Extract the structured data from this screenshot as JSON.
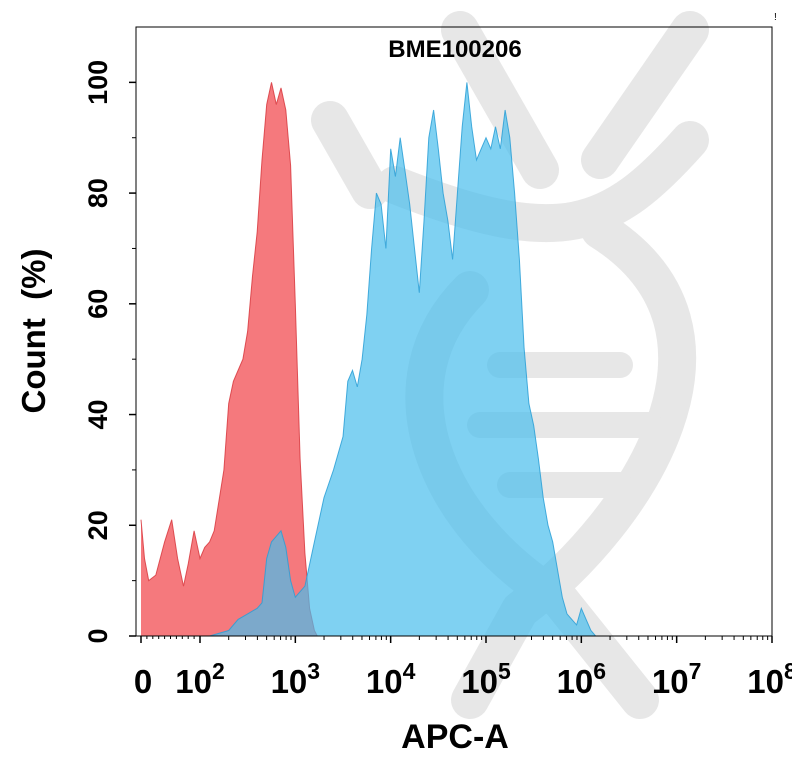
{
  "chart_data": {
    "type": "area",
    "title": "BME100206",
    "xlabel": "APC-A",
    "ylabel": "Count  (%)",
    "x_scale": "biexponential-log",
    "xlim": [
      0,
      100000000
    ],
    "ylim": [
      0,
      110
    ],
    "grid": false,
    "legend": "none",
    "x_ticks": [
      {
        "value": 0,
        "base": "0",
        "exp": ""
      },
      {
        "value": 100,
        "base": "10",
        "exp": "2"
      },
      {
        "value": 1000,
        "base": "10",
        "exp": "3"
      },
      {
        "value": 10000,
        "base": "10",
        "exp": "4"
      },
      {
        "value": 100000,
        "base": "10",
        "exp": "5"
      },
      {
        "value": 1000000,
        "base": "10",
        "exp": "6"
      },
      {
        "value": 10000000,
        "base": "10",
        "exp": "7"
      },
      {
        "value": 100000000,
        "base": "10",
        "exp": "8"
      }
    ],
    "y_ticks": [
      0,
      20,
      40,
      60,
      80,
      100
    ],
    "series": [
      {
        "color": "#f4676b",
        "stroke": "#d83a40",
        "points": [
          [
            0,
            21
          ],
          [
            6,
            14
          ],
          [
            13,
            10
          ],
          [
            25,
            11
          ],
          [
            40,
            17
          ],
          [
            52,
            21
          ],
          [
            62,
            14
          ],
          [
            72,
            9
          ],
          [
            80,
            13
          ],
          [
            90,
            19
          ],
          [
            100,
            14
          ],
          [
            112,
            16
          ],
          [
            126,
            17
          ],
          [
            141,
            19
          ],
          [
            160,
            25
          ],
          [
            178,
            30
          ],
          [
            200,
            42
          ],
          [
            224,
            46
          ],
          [
            251,
            48
          ],
          [
            282,
            50
          ],
          [
            316,
            55
          ],
          [
            355,
            65
          ],
          [
            398,
            73
          ],
          [
            447,
            86
          ],
          [
            501,
            96
          ],
          [
            562,
            100
          ],
          [
            631,
            96
          ],
          [
            708,
            99
          ],
          [
            794,
            95
          ],
          [
            891,
            85
          ],
          [
            1000,
            60
          ],
          [
            1122,
            32
          ],
          [
            1259,
            15
          ],
          [
            1413,
            5
          ],
          [
            1585,
            1
          ],
          [
            1700,
            0
          ]
        ]
      },
      {
        "color": "#49bdec",
        "stroke": "#2a9fd6",
        "points": [
          [
            50,
            0
          ],
          [
            126,
            0
          ],
          [
            200,
            1
          ],
          [
            251,
            3
          ],
          [
            316,
            4
          ],
          [
            398,
            5
          ],
          [
            447,
            6
          ],
          [
            501,
            14
          ],
          [
            562,
            17
          ],
          [
            631,
            18
          ],
          [
            708,
            19
          ],
          [
            794,
            16
          ],
          [
            891,
            10
          ],
          [
            1000,
            7
          ],
          [
            1259,
            9
          ],
          [
            1585,
            17
          ],
          [
            2000,
            25
          ],
          [
            2512,
            30
          ],
          [
            3162,
            36
          ],
          [
            3548,
            46
          ],
          [
            3981,
            48
          ],
          [
            4467,
            45
          ],
          [
            5012,
            50
          ],
          [
            5623,
            58
          ],
          [
            6310,
            70
          ],
          [
            7079,
            80
          ],
          [
            7943,
            78
          ],
          [
            8913,
            70
          ],
          [
            10000,
            88
          ],
          [
            11220,
            83
          ],
          [
            12589,
            90
          ],
          [
            14125,
            84
          ],
          [
            15849,
            78
          ],
          [
            17783,
            70
          ],
          [
            19953,
            62
          ],
          [
            22387,
            75
          ],
          [
            25119,
            90
          ],
          [
            28184,
            95
          ],
          [
            31623,
            88
          ],
          [
            35481,
            80
          ],
          [
            39811,
            75
          ],
          [
            44668,
            68
          ],
          [
            50119,
            80
          ],
          [
            56234,
            92
          ],
          [
            63096,
            100
          ],
          [
            70795,
            92
          ],
          [
            79433,
            86
          ],
          [
            89125,
            88
          ],
          [
            100000,
            90
          ],
          [
            112202,
            88
          ],
          [
            125893,
            92
          ],
          [
            141254,
            88
          ],
          [
            158489,
            95
          ],
          [
            177828,
            90
          ],
          [
            199526,
            80
          ],
          [
            223872,
            68
          ],
          [
            251189,
            52
          ],
          [
            281838,
            42
          ],
          [
            316228,
            38
          ],
          [
            354813,
            32
          ],
          [
            398107,
            25
          ],
          [
            446684,
            20
          ],
          [
            501187,
            17
          ],
          [
            562341,
            12
          ],
          [
            630957,
            7
          ],
          [
            707946,
            4
          ],
          [
            794328,
            3
          ],
          [
            891251,
            2
          ],
          [
            1000000,
            5
          ],
          [
            1122018,
            3
          ],
          [
            1258925,
            1
          ],
          [
            1412538,
            0
          ]
        ]
      }
    ]
  },
  "header": {
    "corner_mark": "!"
  },
  "watermark": {
    "color": "#e6e6e6"
  }
}
